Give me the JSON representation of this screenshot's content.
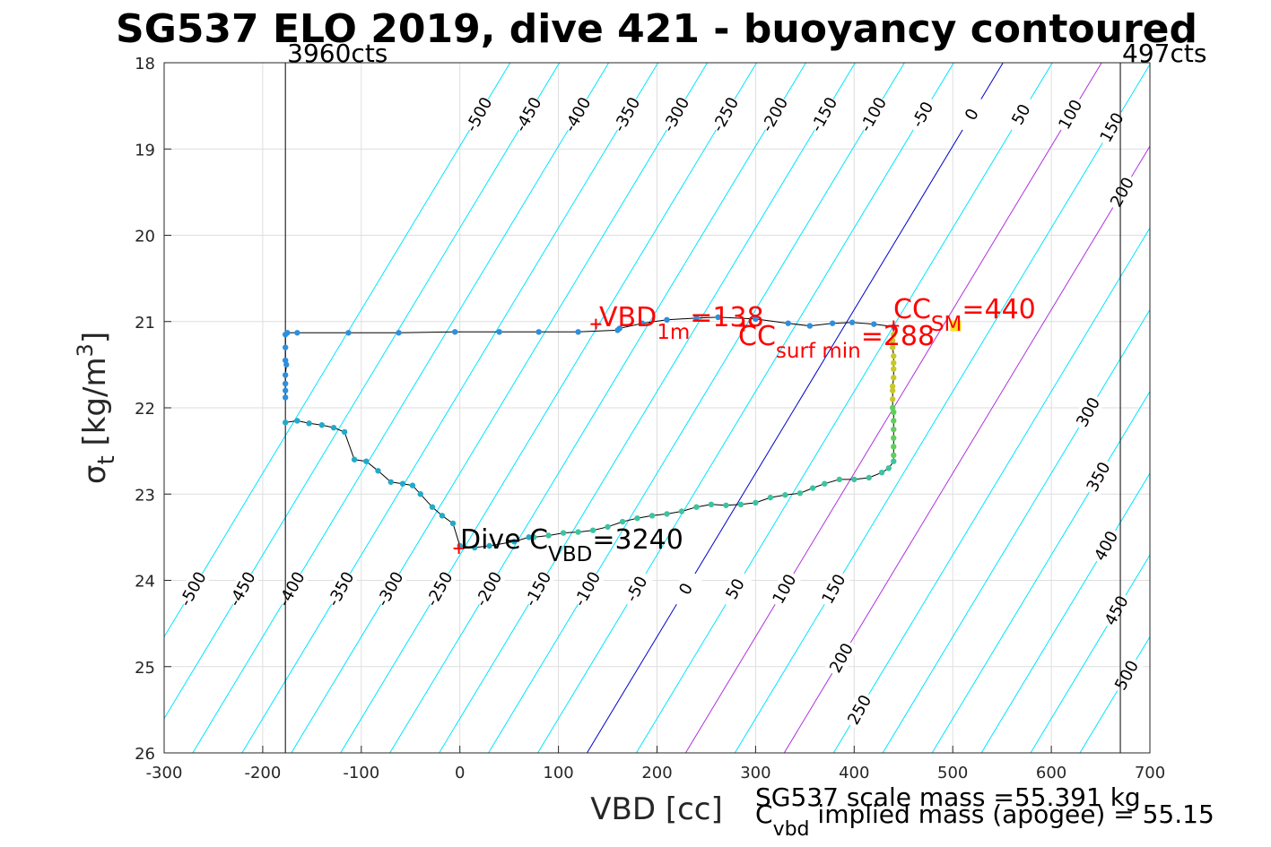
{
  "chart_data": {
    "type": "scatter",
    "title": "SG537 ELO 2019, dive 421 - buoyancy contoured",
    "xlabel": "VBD [cc]",
    "ylabel": {
      "main": "σ",
      "sub": "t",
      "unit_pre": " [kg/m",
      "unit_sup": "3",
      "unit_post": "]"
    },
    "xlim": [
      -300,
      700
    ],
    "ylim": [
      18,
      26
    ],
    "y_reversed": true,
    "grid": true,
    "xticks": [
      -300,
      -200,
      -100,
      0,
      100,
      200,
      300,
      400,
      500,
      600,
      700
    ],
    "yticks": [
      18,
      19,
      20,
      21,
      22,
      23,
      24,
      25,
      26
    ],
    "xtick_labels": [
      "-300",
      "-200",
      "-100",
      "0",
      "100",
      "200",
      "300",
      "400",
      "500",
      "600",
      "700"
    ],
    "ytick_labels": [
      "18",
      "19",
      "20",
      "21",
      "22",
      "23",
      "24",
      "25",
      "26"
    ],
    "vertical_limit_lines": [
      {
        "x": -177,
        "label": "3960cts"
      },
      {
        "x": 670,
        "label": "497cts"
      }
    ],
    "buoyancy_contours": {
      "levels": [
        -500,
        -450,
        -400,
        -350,
        -300,
        -250,
        -200,
        -150,
        -100,
        -50,
        0,
        50,
        100,
        150,
        200,
        250,
        300,
        350,
        400,
        450,
        500
      ],
      "zero_x_at_sigma": {
        "sigma_low": 18,
        "x_low": 551,
        "sigma_high": 26,
        "x_high": 129
      },
      "spacing_cc": 50,
      "colors": {
        "default": "#00e5ff",
        "zero": "#0000cc",
        "highlight": "#b030e0"
      },
      "highlight_levels": [
        100,
        200
      ],
      "top_labels": [
        "-500",
        "-450",
        "-400",
        "-350",
        "-300",
        "-250",
        "-200",
        "-150",
        "-100",
        "-50",
        "0",
        "50",
        "100",
        "150",
        "200"
      ],
      "bottom_labels": [
        "-500",
        "-450",
        "-400",
        "-350",
        "-300",
        "-250",
        "-200",
        "-150",
        "-100",
        "-50",
        "0",
        "50",
        "100",
        "150",
        "200",
        "250"
      ],
      "right_labels": [
        "300",
        "350",
        "400",
        "450",
        "500"
      ]
    },
    "series": [
      {
        "color": "#2e8fdc",
        "points": [
          [
            160,
            21.1
          ],
          [
            162,
            21.08
          ],
          [
            185,
            21.02
          ],
          [
            210,
            20.98
          ],
          [
            240,
            20.96
          ],
          [
            262,
            20.95
          ],
          [
            300,
            20.97
          ],
          [
            333,
            21.02
          ],
          [
            355,
            21.05
          ],
          [
            378,
            21.02
          ],
          [
            398,
            21.01
          ],
          [
            420,
            21.03
          ],
          [
            440,
            21.06
          ],
          [
            120,
            21.12
          ],
          [
            80,
            21.12
          ],
          [
            40,
            21.12
          ],
          [
            -5,
            21.12
          ],
          [
            -62,
            21.13
          ],
          [
            -113,
            21.13
          ],
          [
            -165,
            21.13
          ],
          [
            -175,
            21.13
          ],
          [
            -177,
            21.15
          ],
          [
            -177,
            21.3
          ],
          [
            -177,
            21.45
          ],
          [
            -176,
            21.5
          ],
          [
            -177,
            21.62
          ],
          [
            -177,
            21.72
          ],
          [
            -177,
            21.8
          ],
          [
            -177,
            21.88
          ]
        ]
      },
      {
        "color": "#22aac8",
        "points": [
          [
            -177,
            22.17
          ],
          [
            -165,
            22.15
          ],
          [
            -153,
            22.18
          ],
          [
            -140,
            22.2
          ],
          [
            -128,
            22.23
          ],
          [
            -117,
            22.28
          ],
          [
            -107,
            22.6
          ],
          [
            -95,
            22.62
          ],
          [
            -83,
            22.73
          ],
          [
            -70,
            22.86
          ],
          [
            -58,
            22.88
          ],
          [
            -48,
            22.9
          ],
          [
            -40,
            23.0
          ],
          [
            -28,
            23.15
          ],
          [
            -18,
            23.25
          ],
          [
            -7,
            23.34
          ],
          [
            0,
            23.6
          ],
          [
            15,
            23.62
          ],
          [
            30,
            23.6
          ],
          [
            55,
            23.55
          ],
          [
            70,
            23.5
          ]
        ]
      },
      {
        "color": "#3cc4a0",
        "points": [
          [
            75,
            23.5
          ],
          [
            90,
            23.48
          ],
          [
            105,
            23.45
          ],
          [
            120,
            23.44
          ],
          [
            135,
            23.42
          ],
          [
            150,
            23.38
          ],
          [
            165,
            23.32
          ],
          [
            180,
            23.28
          ],
          [
            195,
            23.25
          ],
          [
            210,
            23.23
          ],
          [
            225,
            23.2
          ],
          [
            240,
            23.15
          ],
          [
            255,
            23.12
          ],
          [
            270,
            23.13
          ],
          [
            285,
            23.12
          ],
          [
            300,
            23.1
          ],
          [
            315,
            23.04
          ],
          [
            330,
            23.01
          ],
          [
            345,
            22.99
          ],
          [
            358,
            22.93
          ],
          [
            370,
            22.88
          ],
          [
            385,
            22.83
          ],
          [
            400,
            22.83
          ],
          [
            415,
            22.81
          ],
          [
            428,
            22.75
          ],
          [
            435,
            22.7
          ],
          [
            440,
            22.62
          ]
        ]
      },
      {
        "color": "#5fcf5a",
        "points": [
          [
            440,
            22.55
          ],
          [
            440,
            22.45
          ],
          [
            440,
            22.35
          ],
          [
            440,
            22.25
          ],
          [
            440,
            22.15
          ],
          [
            440,
            22.05
          ],
          [
            439,
            22.0
          ]
        ]
      },
      {
        "color": "#c8c828",
        "points": [
          [
            439,
            21.9
          ],
          [
            439,
            21.8
          ],
          [
            439,
            21.75
          ],
          [
            440,
            21.65
          ],
          [
            440,
            21.55
          ],
          [
            440,
            21.48
          ],
          [
            440,
            21.4
          ],
          [
            439,
            21.3
          ],
          [
            439,
            21.22
          ],
          [
            440,
            21.15
          ]
        ]
      }
    ],
    "markers": [
      {
        "name": "vbd-1m-marker",
        "x": 138,
        "y": 21.03
      },
      {
        "name": "cc-surf-min-marker",
        "x": 288,
        "y": 21.05
      },
      {
        "name": "cc-sm-marker",
        "x": 440,
        "y": 21.05
      },
      {
        "name": "dive-c-vbd-marker",
        "x": -1,
        "y": 23.63
      }
    ],
    "annotations": {
      "vbd_1m": {
        "main": "VBD",
        "sub": "1m",
        "tail": "=138"
      },
      "cc_surf_min": {
        "main": "CC",
        "sub": "surf min",
        "tail": "=288"
      },
      "cc_sm": {
        "main": "CC",
        "sub": "SM",
        "tail": "=440"
      },
      "dive_c_vbd": {
        "main": "Dive C",
        "sub": "VBD",
        "tail": "=3240"
      }
    },
    "footer": {
      "scale_mass": "SG537 scale mass =55.391 kg",
      "implied_mass": {
        "main": "C",
        "sub": "vbd",
        "tail": " implied mass (apogee) = 55.15"
      }
    }
  }
}
